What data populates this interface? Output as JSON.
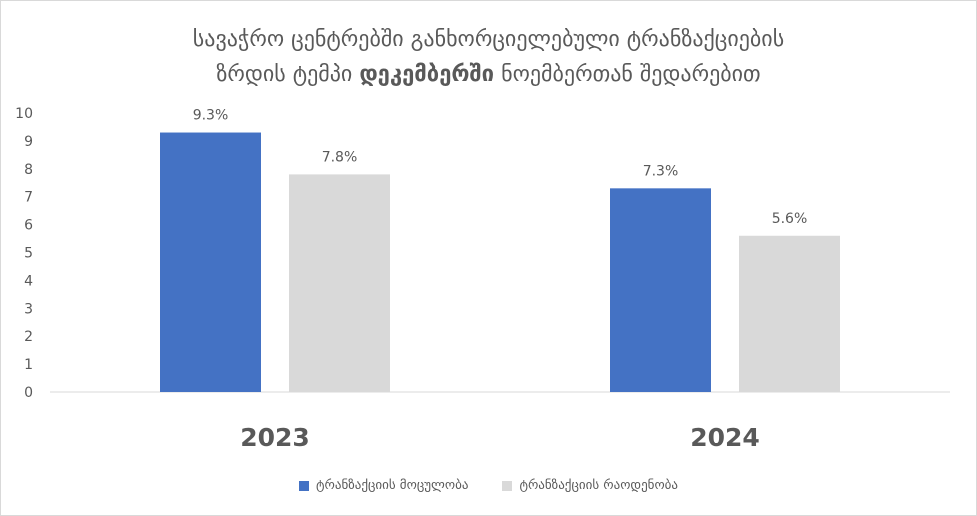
{
  "title": {
    "line1": "სავაჭრო ცენტრებში განხორციელებული ტრანზაქციების",
    "line2_before": "ზრდის ტემპი ",
    "line2_bold": "დეკემბერში",
    "line2_after": " ნოემბერთან შედარებით"
  },
  "colors": {
    "series1": "#4472C4",
    "series2": "#D9D9D9",
    "axis": "#d9d9d9",
    "text": "#595959"
  },
  "chart_data": {
    "type": "bar",
    "categories": [
      "2023",
      "2024"
    ],
    "series": [
      {
        "name": "ტრანზაქციის მოცულობა",
        "values": [
          9.3,
          7.3
        ],
        "labels": [
          "9.3%",
          "7.3%"
        ]
      },
      {
        "name": "ტრანზაქციის რაოდენობა",
        "values": [
          7.8,
          5.6
        ],
        "labels": [
          "7.8%",
          "5.6%"
        ]
      }
    ],
    "ylim": [
      0,
      10
    ],
    "yticks": [
      0,
      1,
      2,
      3,
      4,
      5,
      6,
      7,
      8,
      9,
      10
    ],
    "grid": false,
    "legend": "bottom"
  }
}
